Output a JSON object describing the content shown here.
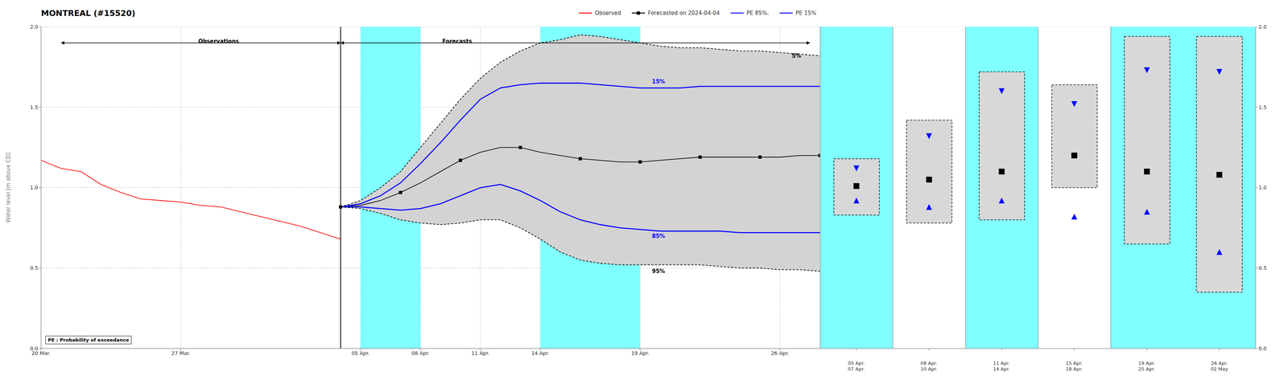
{
  "chart_data": [
    {
      "type": "line",
      "title": "MONTREAL (#15520)",
      "y_label": "Water level [m above CD]",
      "xlim": [
        0,
        39
      ],
      "xticks": [
        {
          "value": 0,
          "label": "20 Mar."
        },
        {
          "value": 7,
          "label": "27 Mar."
        },
        {
          "value": 16,
          "label": "05 Apr."
        },
        {
          "value": 19,
          "label": "08 Apr."
        },
        {
          "value": 22,
          "label": "11 Apr."
        },
        {
          "value": 25,
          "label": "14 Apr."
        },
        {
          "value": 30,
          "label": "19 Apr."
        },
        {
          "value": 37,
          "label": "26 Apr."
        }
      ],
      "ylim": [
        0.0,
        2.0
      ],
      "yticks": [
        {
          "value": 0.0,
          "label": "0.0"
        },
        0.5,
        {
          "value": 1.0,
          "label": "1.0"
        },
        1.5,
        {
          "value": 2.0,
          "label": "2.0"
        }
      ],
      "grid": true,
      "legend": "top",
      "series": [
        {
          "name": "Observed",
          "color": "#ff0000",
          "x": [
            0,
            1,
            2,
            3,
            4,
            5,
            6,
            7,
            8,
            9,
            10,
            11,
            12,
            13,
            14,
            15
          ],
          "values": [
            1.17,
            1.12,
            1.1,
            1.02,
            0.97,
            0.93,
            0.92,
            0.91,
            0.89,
            0.88,
            0.85,
            0.82,
            0.79,
            0.76,
            0.72,
            0.68
          ]
        },
        {
          "name": "Forecasted on 2024-04-04",
          "color": "#000000",
          "marker": "square",
          "x": [
            15,
            16,
            17,
            18,
            19,
            20,
            21,
            22,
            23,
            24,
            25,
            26,
            27,
            28,
            29,
            30,
            31,
            32,
            33,
            34,
            35,
            36,
            37,
            38,
            39
          ],
          "values": [
            0.88,
            0.89,
            0.92,
            0.97,
            1.03,
            1.1,
            1.17,
            1.22,
            1.25,
            1.25,
            1.22,
            1.2,
            1.18,
            1.17,
            1.16,
            1.16,
            1.17,
            1.18,
            1.19,
            1.19,
            1.19,
            1.19,
            1.19,
            1.2,
            1.2
          ]
        },
        {
          "name": "PE 85%.",
          "color": "#0000ff",
          "x": [
            15,
            16,
            17,
            18,
            19,
            20,
            21,
            22,
            23,
            24,
            25,
            26,
            27,
            28,
            29,
            30,
            31,
            32,
            33,
            34,
            35,
            36,
            37,
            38,
            39
          ],
          "values": [
            0.88,
            0.88,
            0.87,
            0.86,
            0.87,
            0.9,
            0.95,
            1.0,
            1.02,
            0.98,
            0.92,
            0.85,
            0.8,
            0.77,
            0.75,
            0.74,
            0.73,
            0.73,
            0.73,
            0.73,
            0.72,
            0.72,
            0.72,
            0.72,
            0.72
          ]
        },
        {
          "name": "PE 15%",
          "color": "#0000ff",
          "x": [
            15,
            16,
            17,
            18,
            19,
            20,
            21,
            22,
            23,
            24,
            25,
            26,
            27,
            28,
            29,
            30,
            31,
            32,
            33,
            34,
            35,
            36,
            37,
            38,
            39
          ],
          "values": [
            0.88,
            0.9,
            0.95,
            1.03,
            1.15,
            1.28,
            1.42,
            1.55,
            1.62,
            1.64,
            1.65,
            1.65,
            1.65,
            1.64,
            1.63,
            1.62,
            1.62,
            1.62,
            1.63,
            1.63,
            1.63,
            1.63,
            1.63,
            1.63,
            1.63
          ]
        },
        {
          "color": "#000000",
          "line_style": "dashed",
          "x": [
            15,
            16,
            17,
            18,
            19,
            20,
            21,
            22,
            23,
            24,
            25,
            26,
            27,
            28,
            29,
            30,
            31,
            32,
            33,
            34,
            35,
            36,
            37,
            38,
            39
          ],
          "values": [
            0.88,
            0.92,
            1.0,
            1.1,
            1.25,
            1.4,
            1.55,
            1.68,
            1.78,
            1.85,
            1.9,
            1.92,
            1.95,
            1.94,
            1.92,
            1.9,
            1.88,
            1.87,
            1.87,
            1.86,
            1.85,
            1.85,
            1.84,
            1.83,
            1.82
          ]
        },
        {
          "color": "#000000",
          "line_style": "dashed",
          "x": [
            15,
            16,
            17,
            18,
            19,
            20,
            21,
            22,
            23,
            24,
            25,
            26,
            27,
            28,
            29,
            30,
            31,
            32,
            33,
            34,
            35,
            36,
            37,
            38,
            39
          ],
          "values": [
            0.88,
            0.87,
            0.84,
            0.8,
            0.78,
            0.77,
            0.78,
            0.8,
            0.8,
            0.75,
            0.68,
            0.6,
            0.55,
            0.53,
            0.52,
            0.52,
            0.52,
            0.52,
            0.52,
            0.51,
            0.5,
            0.5,
            0.49,
            0.49,
            0.48
          ]
        }
      ],
      "fill_between": {
        "color": "#d3d3d3"
      },
      "shaded_spans": [
        {
          "from": 16,
          "to": 19,
          "color": "#7fffff"
        },
        {
          "from": 25,
          "to": 30,
          "color": "#7fffff"
        }
      ],
      "reference_lines": [
        {
          "x": 15,
          "color": "#000000"
        }
      ],
      "arrows": [
        {
          "from": 1,
          "to": 15,
          "y": 1.9
        },
        {
          "from": 15,
          "to": 38.5,
          "y": 1.9
        }
      ],
      "annotations": [
        {
          "text": "5%",
          "x": 37.5,
          "y": 1.82,
          "color": "#000000"
        },
        {
          "text": "15%",
          "x": 30.5,
          "y": 1.66,
          "color": "#0000ff"
        },
        {
          "text": "85%",
          "x": 30.5,
          "y": 0.7,
          "color": "#0000ff"
        },
        {
          "text": "95%",
          "x": 30.5,
          "y": 0.48,
          "color": "#000000"
        },
        {
          "text": "Observations",
          "x": 10,
          "y": 1.91
        },
        {
          "text": "Forecasts",
          "x": 20,
          "y": 1.91
        },
        {
          "text": "PE : Probability of exceedance"
        }
      ]
    },
    {
      "type": "range",
      "x_label": "05 Apr.\n07 Apr.",
      "xlim": [
        -0.6,
        0.6
      ],
      "ylim": [
        0.0,
        2.0
      ],
      "yticks": [
        {
          "value": 0.0,
          "label": "0.0"
        },
        0.5,
        {
          "value": 1.0,
          "label": "1.0"
        },
        1.5,
        {
          "value": 2.0,
          "label": "2.0"
        }
      ],
      "grid": true,
      "tick_labels": false,
      "background": "#7fffff",
      "series": [
        {
          "type": "box",
          "color": "#d8d8d8",
          "line_style": "dashed",
          "values": [
            [
              0.83,
              1.18
            ]
          ]
        },
        {
          "color": "#0000ff",
          "marker": "triangle-down",
          "values": [
            1.12
          ]
        },
        {
          "color": "#000000",
          "marker": "square",
          "values": [
            1.01
          ]
        },
        {
          "color": "#0000ff",
          "marker": "triangle-up",
          "values": [
            0.92
          ]
        }
      ]
    },
    {
      "type": "range",
      "x_label": "08 Apr.\n10 Apr.",
      "xlim": [
        -0.6,
        0.6
      ],
      "ylim": [
        0.0,
        2.0
      ],
      "yticks": [
        {
          "value": 0.0,
          "label": "0.0"
        },
        0.5,
        {
          "value": 1.0,
          "label": "1.0"
        },
        1.5,
        {
          "value": 2.0,
          "label": "2.0"
        }
      ],
      "grid": true,
      "tick_labels": false,
      "background": "#ffffff",
      "series": [
        {
          "type": "box",
          "color": "#d8d8d8",
          "line_style": "dashed",
          "values": [
            [
              0.78,
              1.42
            ]
          ]
        },
        {
          "color": "#0000ff",
          "marker": "triangle-down",
          "values": [
            1.32
          ]
        },
        {
          "color": "#000000",
          "marker": "square",
          "values": [
            1.05
          ]
        },
        {
          "color": "#0000ff",
          "marker": "triangle-up",
          "values": [
            0.88
          ]
        }
      ]
    },
    {
      "type": "range",
      "x_label": "11 Apr.\n14 Apr.",
      "xlim": [
        -0.6,
        0.6
      ],
      "ylim": [
        0.0,
        2.0
      ],
      "yticks": [
        {
          "value": 0.0,
          "label": "0.0"
        },
        0.5,
        {
          "value": 1.0,
          "label": "1.0"
        },
        1.5,
        {
          "value": 2.0,
          "label": "2.0"
        }
      ],
      "grid": true,
      "tick_labels": false,
      "background": "#7fffff",
      "series": [
        {
          "type": "box",
          "color": "#d8d8d8",
          "line_style": "dashed",
          "values": [
            [
              0.8,
              1.72
            ]
          ]
        },
        {
          "color": "#0000ff",
          "marker": "triangle-down",
          "values": [
            1.6
          ]
        },
        {
          "color": "#000000",
          "marker": "square",
          "values": [
            1.1
          ]
        },
        {
          "color": "#0000ff",
          "marker": "triangle-up",
          "values": [
            0.92
          ]
        }
      ]
    },
    {
      "type": "range",
      "x_label": "15 Apr.\n18 Apr.",
      "xlim": [
        -0.6,
        0.6
      ],
      "ylim": [
        0.0,
        2.0
      ],
      "yticks": [
        {
          "value": 0.0,
          "label": "0.0"
        },
        0.5,
        {
          "value": 1.0,
          "label": "1.0"
        },
        1.5,
        {
          "value": 2.0,
          "label": "2.0"
        }
      ],
      "grid": true,
      "tick_labels": false,
      "background": "#ffffff",
      "series": [
        {
          "type": "box",
          "color": "#d8d8d8",
          "line_style": "dashed",
          "values": [
            [
              1.0,
              1.64
            ]
          ]
        },
        {
          "color": "#0000ff",
          "marker": "triangle-down",
          "values": [
            1.52
          ]
        },
        {
          "color": "#000000",
          "marker": "square",
          "values": [
            1.2
          ]
        },
        {
          "color": "#0000ff",
          "marker": "triangle-up",
          "values": [
            0.82
          ]
        }
      ]
    },
    {
      "type": "range",
      "x_label": "19 Apr.\n25 Apr.",
      "xlim": [
        -0.6,
        0.6
      ],
      "ylim": [
        0.0,
        2.0
      ],
      "yticks": [
        {
          "value": 0.0,
          "label": "0.0"
        },
        0.5,
        {
          "value": 1.0,
          "label": "1.0"
        },
        1.5,
        {
          "value": 2.0,
          "label": "2.0"
        }
      ],
      "grid": true,
      "tick_labels": false,
      "background": "#7fffff",
      "series": [
        {
          "type": "box",
          "color": "#d8d8d8",
          "line_style": "dashed",
          "values": [
            [
              0.65,
              1.94
            ]
          ]
        },
        {
          "color": "#0000ff",
          "marker": "triangle-down",
          "values": [
            1.73
          ]
        },
        {
          "color": "#000000",
          "marker": "square",
          "values": [
            1.1
          ]
        },
        {
          "color": "#0000ff",
          "marker": "triangle-up",
          "values": [
            0.85
          ]
        }
      ]
    },
    {
      "type": "range",
      "x_label": "26 Apr.\n02 May",
      "xlim": [
        -0.6,
        0.6
      ],
      "ylim": [
        0.0,
        2.0
      ],
      "yticks": [
        {
          "value": 0.0,
          "label": "0.0"
        },
        0.5,
        {
          "value": 1.0,
          "label": "1.0"
        },
        1.5,
        {
          "value": 2.0,
          "label": "2.0"
        }
      ],
      "grid": true,
      "tick_labels": "y",
      "background": "#7fffff",
      "series": [
        {
          "type": "box",
          "color": "#d8d8d8",
          "line_style": "dashed",
          "values": [
            [
              0.35,
              1.94
            ]
          ]
        },
        {
          "color": "#0000ff",
          "marker": "triangle-down",
          "values": [
            1.72
          ]
        },
        {
          "color": "#000000",
          "marker": "square",
          "values": [
            1.08
          ]
        },
        {
          "color": "#0000ff",
          "marker": "triangle-up",
          "values": [
            0.6
          ]
        }
      ]
    }
  ]
}
